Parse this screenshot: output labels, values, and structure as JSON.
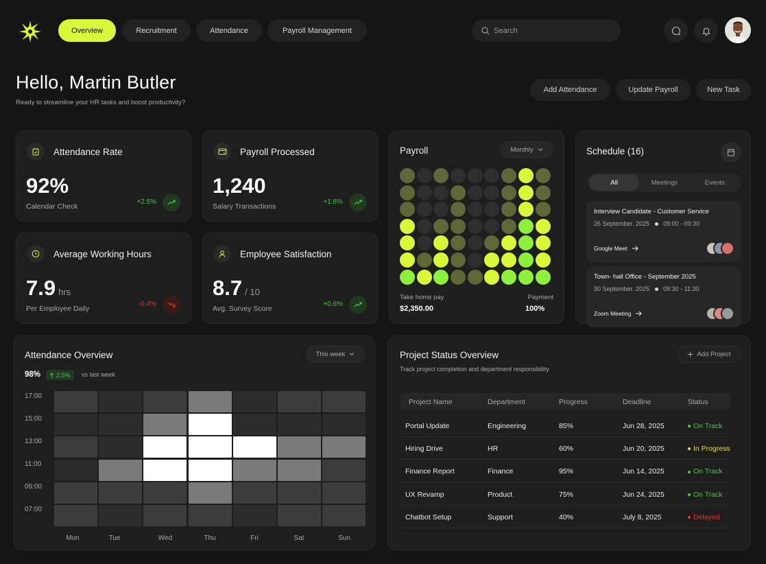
{
  "nav": {
    "tabs": [
      {
        "label": "Overview",
        "active": true
      },
      {
        "label": "Recruitment",
        "active": false
      },
      {
        "label": "Attendance",
        "active": false
      },
      {
        "label": "Payroll Management",
        "active": false
      }
    ],
    "search_placeholder": "Search"
  },
  "greeting": {
    "title": "Hello, Martin Butler",
    "subtitle": "Ready to streamline your HR tasks and boost productivity?"
  },
  "actions": [
    "Add Attendance",
    "Update Payroll",
    "New Task"
  ],
  "stats": [
    {
      "title": "Attendance Rate",
      "value": "92%",
      "unit": "",
      "sub": "Calendar Check",
      "change": "+2.5%",
      "trend": "up"
    },
    {
      "title": "Payroll Processed",
      "value": "1,240",
      "unit": "",
      "sub": "Salary Transactions",
      "change": "+1.8%",
      "trend": "up"
    },
    {
      "title": "Average Working Hours",
      "value": "7.9",
      "unit": "hrs",
      "sub": "Per Employee Daily",
      "change": "-0.4%",
      "trend": "down"
    },
    {
      "title": "Employee Satisfaction",
      "value": "8.7",
      "unit": "/ 10",
      "sub": "Avg. Survey Score",
      "change": "+0.6%",
      "trend": "up"
    }
  ],
  "payroll": {
    "title": "Payroll",
    "period": "Monthly",
    "take_home_label": "Take home pay",
    "take_home_value": "$2,350.00",
    "payment_label": "Payment",
    "payment_value": "100%",
    "dot_levels": [
      [
        2,
        1,
        2,
        1,
        1,
        1,
        2,
        3,
        2
      ],
      [
        2,
        1,
        1,
        2,
        1,
        1,
        2,
        3,
        2
      ],
      [
        2,
        1,
        1,
        2,
        1,
        1,
        2,
        3,
        2
      ],
      [
        3,
        1,
        2,
        2,
        1,
        1,
        2,
        4,
        3
      ],
      [
        3,
        1,
        3,
        2,
        1,
        2,
        3,
        4,
        3
      ],
      [
        3,
        2,
        3,
        2,
        1,
        3,
        3,
        4,
        3
      ],
      [
        4,
        3,
        4,
        2,
        2,
        3,
        4,
        4,
        4
      ]
    ]
  },
  "schedule": {
    "title": "Schedule (16)",
    "tabs": [
      {
        "label": "All",
        "active": true
      },
      {
        "label": "Meetings",
        "active": false
      },
      {
        "label": "Events",
        "active": false
      }
    ],
    "events": [
      {
        "title": "Interview Candidate - Customer Service",
        "date": "26 September. 2025",
        "time": "09:00 - 09:30",
        "link": "Google Meet"
      },
      {
        "title": "Town- hall Office - September 2025",
        "date": "30 September. 2025",
        "time": "09:30 - 11:30",
        "link": "Zoom Meeting"
      }
    ]
  },
  "attendance_overview": {
    "title": "Attendance Overview",
    "period": "This week",
    "rate": "98%",
    "change": "2.5%",
    "compare": "vs last week",
    "y_labels": [
      "17:00",
      "15:00",
      "13:00",
      "11:00",
      "09:00",
      "07:00"
    ],
    "days": [
      "Mon",
      "Tue",
      "Wed",
      "Thu",
      "Fri",
      "Sat",
      "Sun"
    ],
    "levels": [
      [
        2,
        1,
        2,
        4,
        1,
        2,
        2
      ],
      [
        1,
        1,
        4,
        6,
        1,
        1,
        1
      ],
      [
        2,
        1,
        6,
        6,
        6,
        4,
        4
      ],
      [
        1,
        4,
        6,
        6,
        4,
        4,
        2
      ],
      [
        2,
        2,
        2,
        4,
        2,
        2,
        2
      ],
      [
        2,
        1,
        2,
        2,
        1,
        2,
        2
      ]
    ]
  },
  "projects": {
    "title": "Project Status Overview",
    "subtitle": "Track project completion and department responsibility",
    "add_label": "Add Project",
    "headers": [
      "Project Name",
      "Department",
      "Progress",
      "Deadline",
      "Status"
    ],
    "rows": [
      {
        "name": "Portal Update",
        "dept": "Engineering",
        "progress": "85%",
        "deadline": "Jun 28, 2025",
        "status": "On Track",
        "color": "#3fd13f"
      },
      {
        "name": "Hiring Drive",
        "dept": "HR",
        "progress": "60%",
        "deadline": "Jun 20, 2025",
        "status": "In Progress",
        "color": "#e8e04a"
      },
      {
        "name": "Finance Report",
        "dept": "Finance",
        "progress": "95%",
        "deadline": "Jun 14, 2025",
        "status": "On Track",
        "color": "#3fd13f"
      },
      {
        "name": "UX Revamp",
        "dept": "Product",
        "progress": "75%",
        "deadline": "Jun 24, 2025",
        "status": "On Track",
        "color": "#3fd13f"
      },
      {
        "name": "Chatbot Setup",
        "dept": "Support",
        "progress": "40%",
        "deadline": "July 8, 2025",
        "status": "Delayed",
        "color": "#e8352c"
      }
    ]
  },
  "colors": {
    "accent": "#d9f83b",
    "positive": "#4fc24f",
    "negative": "#d9362c"
  }
}
